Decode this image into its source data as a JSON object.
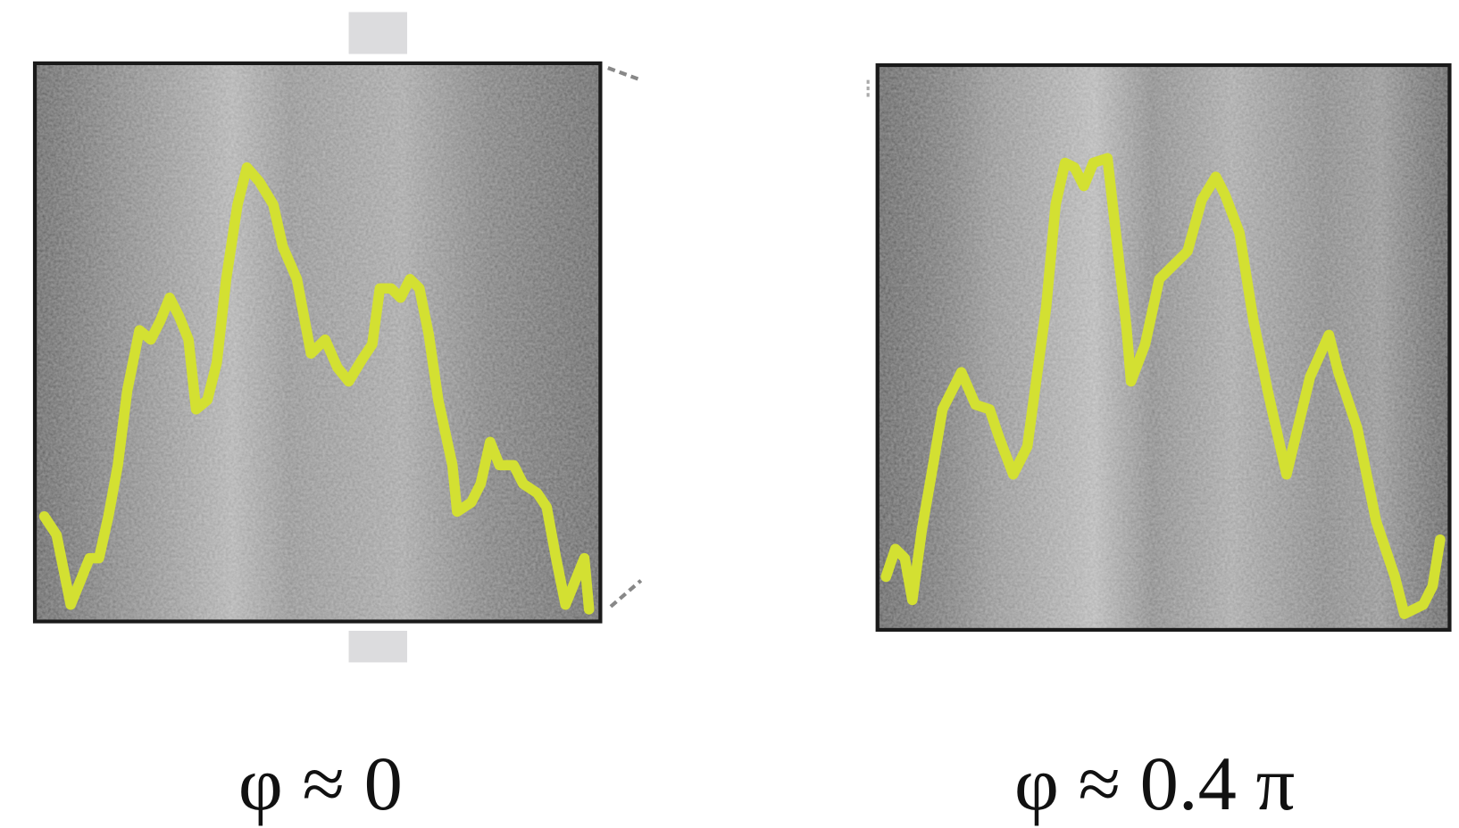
{
  "panels": [
    {
      "label": "φ ≈ 0"
    },
    {
      "label": "φ ≈ 0.4 π"
    }
  ]
}
